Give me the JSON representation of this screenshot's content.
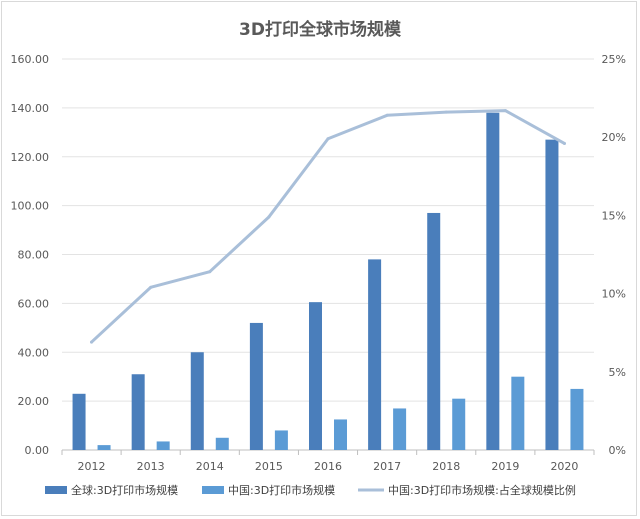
{
  "chart_data": {
    "type": "bar",
    "title": "3D打印全球市场规模",
    "categories": [
      "2012",
      "2013",
      "2014",
      "2015",
      "2016",
      "2017",
      "2018",
      "2019",
      "2020"
    ],
    "y_left": {
      "ylim": [
        0,
        160
      ],
      "ticks": [
        "0.00",
        "20.00",
        "40.00",
        "60.00",
        "80.00",
        "100.00",
        "120.00",
        "140.00",
        "160.00"
      ]
    },
    "y_right": {
      "ylim": [
        0,
        25
      ],
      "ticks": [
        "0%",
        "5%",
        "10%",
        "15%",
        "20%",
        "25%"
      ]
    },
    "series": [
      {
        "name": "全球:3D打印市场规模",
        "kind": "bar",
        "axis": "left",
        "color": "#4a7ebb",
        "values": [
          23,
          31,
          40,
          52,
          60.5,
          78,
          97,
          138,
          127
        ]
      },
      {
        "name": "中国:3D打印市场规模",
        "kind": "bar",
        "axis": "left",
        "color": "#5b9bd5",
        "values": [
          2,
          3.5,
          5,
          8,
          12.5,
          17,
          21,
          30,
          25
        ]
      },
      {
        "name": "中国:3D打印市场规模:占全球规模比例",
        "kind": "line",
        "axis": "right",
        "color": "#a9bfd9",
        "values": [
          6.9,
          10.4,
          11.4,
          14.9,
          19.9,
          21.4,
          21.6,
          21.7,
          19.6
        ]
      }
    ],
    "grid": true,
    "legend_position": "bottom"
  }
}
